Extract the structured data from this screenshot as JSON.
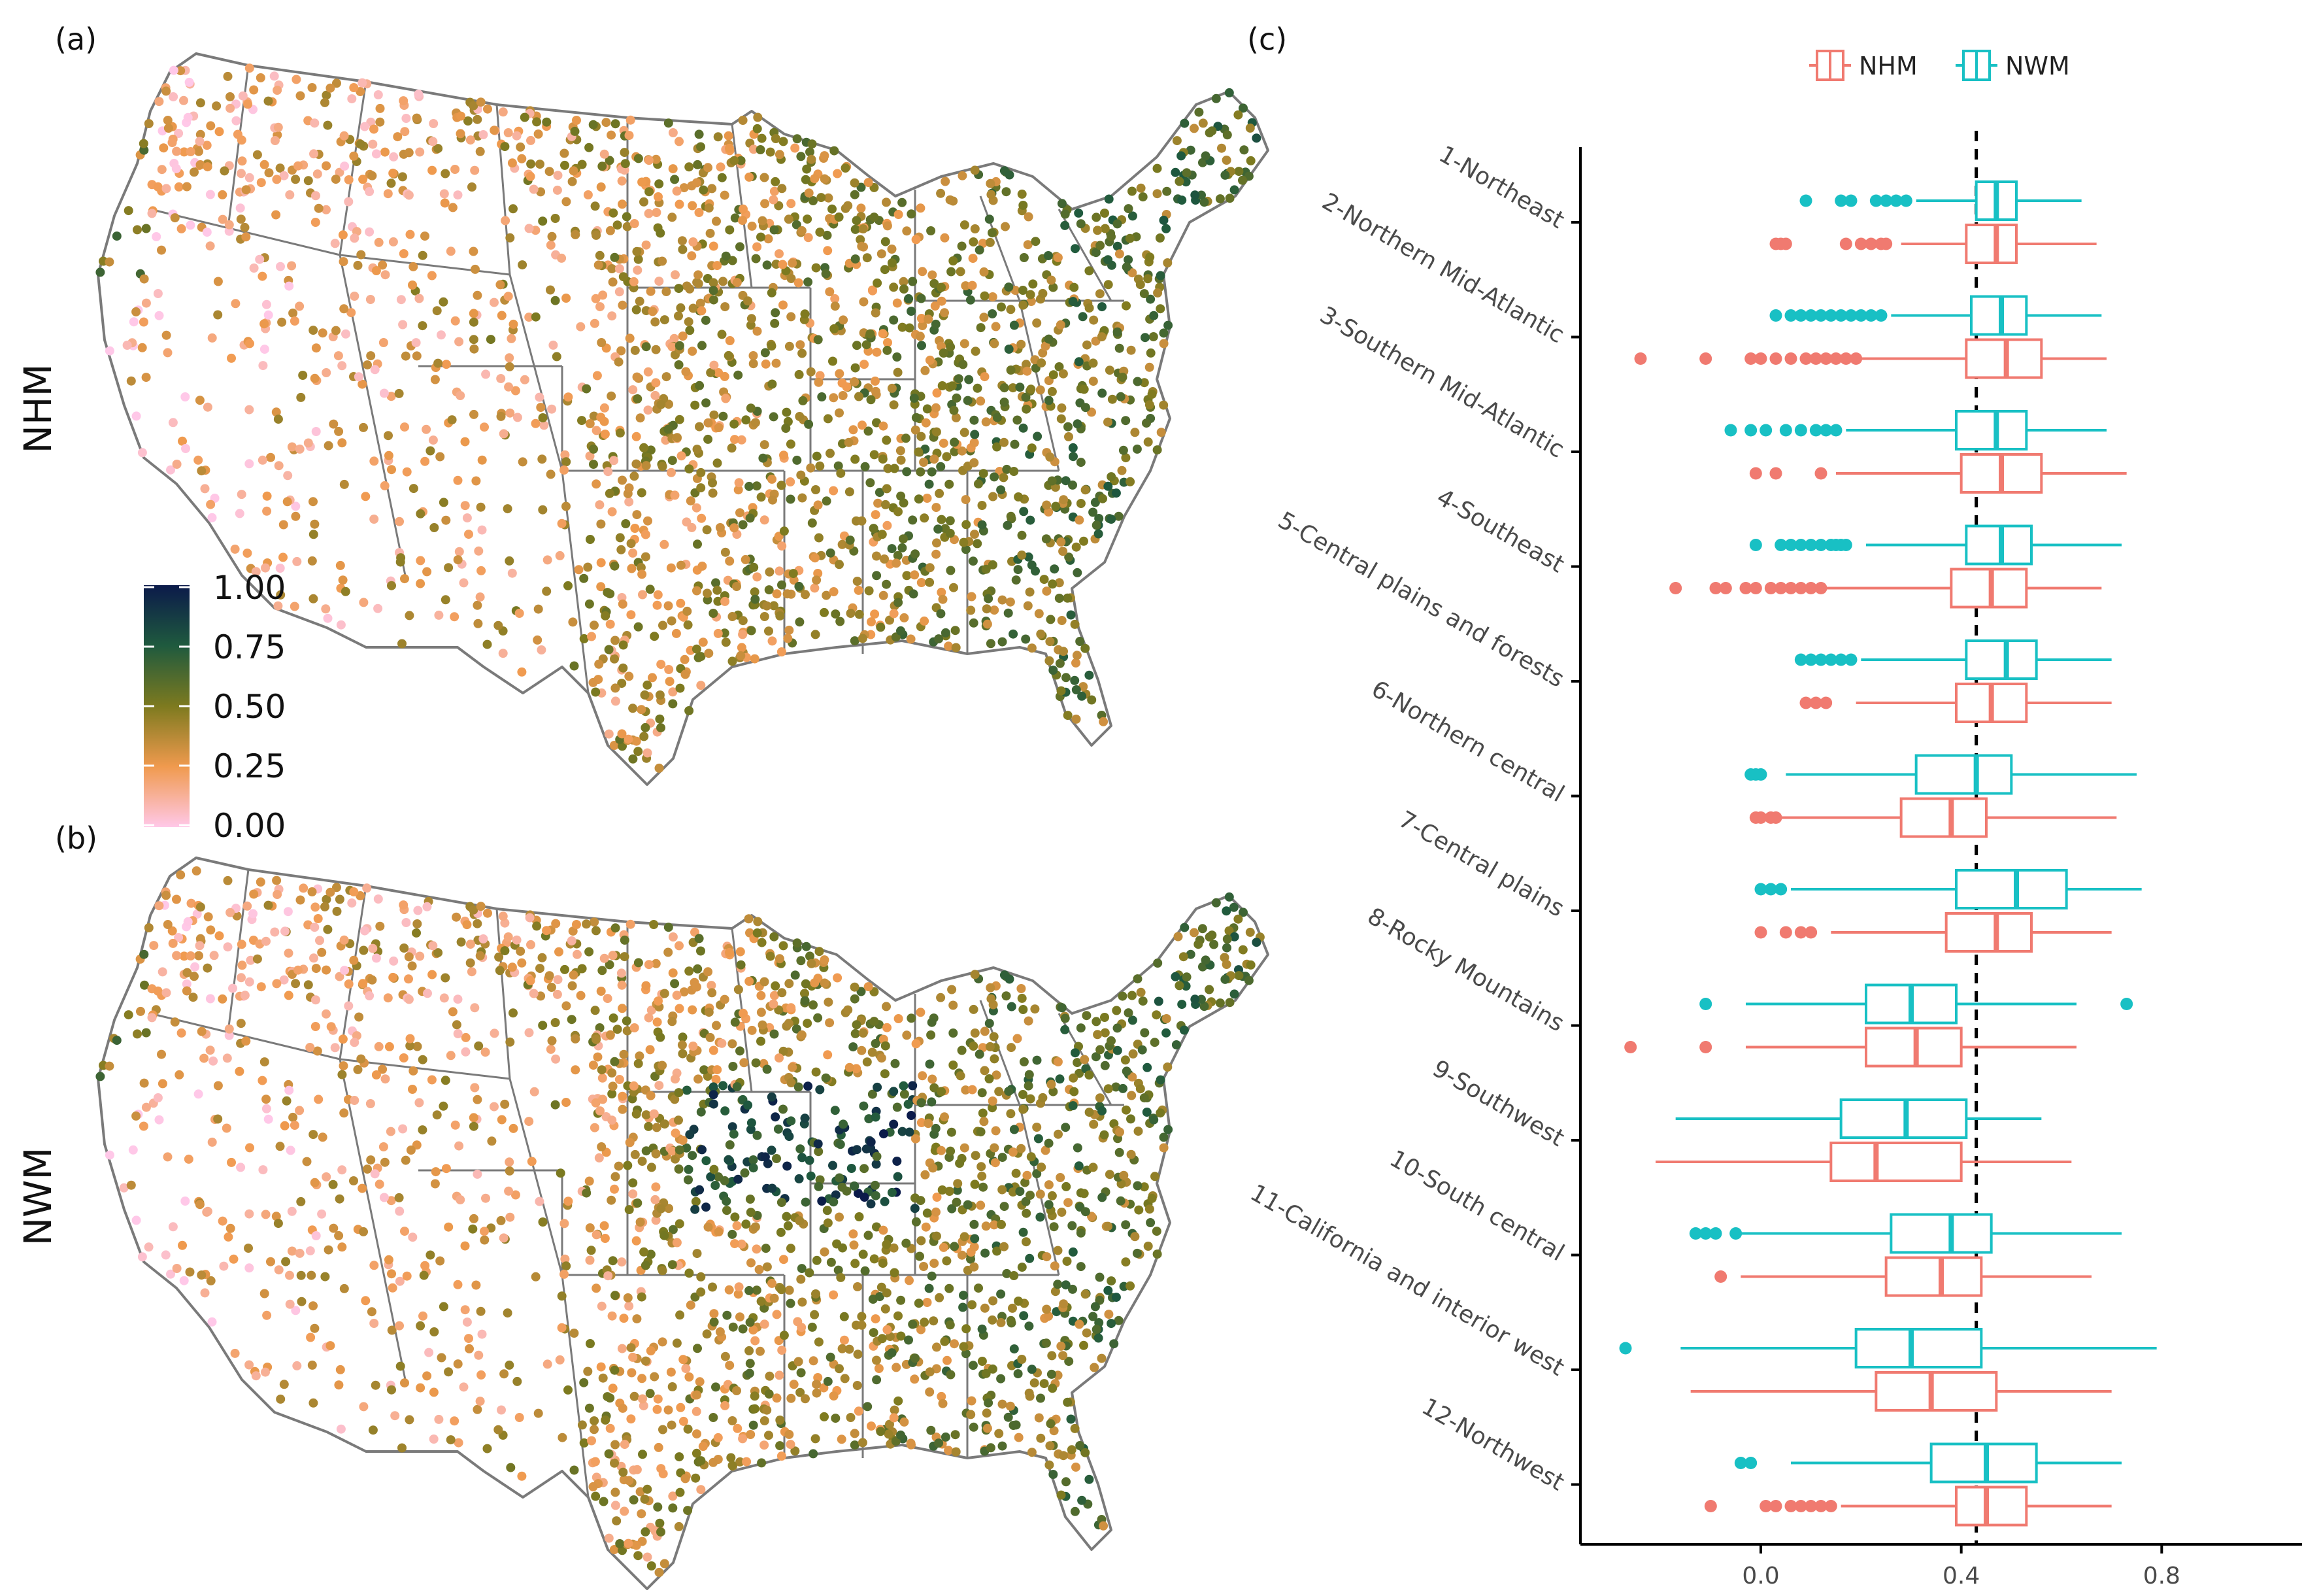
{
  "panels": {
    "a": {
      "label": "(a)",
      "side_title": "NHM"
    },
    "b": {
      "label": "(b)",
      "side_title": "NWM"
    },
    "c": {
      "label": "(c)"
    }
  },
  "colorbar": {
    "ticks": [
      "1.00",
      "0.75",
      "0.50",
      "0.25",
      "0.00"
    ],
    "stops": [
      "#0b1a4a",
      "#1f5a3e",
      "#7d7a1f",
      "#f09a4e",
      "#ffc8e8"
    ]
  },
  "legend": [
    {
      "name": "NHM",
      "color": "#f07a70"
    },
    {
      "name": "NWM",
      "color": "#18c0c4"
    }
  ],
  "chart_data": {
    "type": "boxplot",
    "orientation": "horizontal",
    "x_ticks": [
      "0.0",
      "0.4",
      "0.8"
    ],
    "xlim": [
      -0.36,
      1.08
    ],
    "reference_line": 0.43,
    "categories": [
      "1-Northeast",
      "2-Northern Mid-Atlantic",
      "3-Southern Mid-Atlantic",
      "4-Southeast",
      "5-Central plains and forests",
      "6-Northern central",
      "7-Central plains",
      "8-Rocky Mountains",
      "9-Southwest",
      "10-South central",
      "11-California and interior west",
      "12-Northwest"
    ],
    "series": [
      {
        "name": "NWM",
        "color": "#18c0c4",
        "boxes": [
          {
            "whislo": 0.31,
            "q1": 0.43,
            "med": 0.47,
            "q3": 0.51,
            "whishi": 0.64,
            "outliers": [
              0.09,
              0.16,
              0.18,
              0.23,
              0.25,
              0.27,
              0.29
            ]
          },
          {
            "whislo": 0.26,
            "q1": 0.42,
            "med": 0.48,
            "q3": 0.53,
            "whishi": 0.68,
            "outliers": [
              0.03,
              0.06,
              0.08,
              0.1,
              0.12,
              0.14,
              0.16,
              0.18,
              0.2,
              0.22,
              0.24
            ]
          },
          {
            "whislo": 0.17,
            "q1": 0.39,
            "med": 0.47,
            "q3": 0.53,
            "whishi": 0.69,
            "outliers": [
              -0.06,
              -0.02,
              0.01,
              0.05,
              0.08,
              0.11,
              0.13,
              0.15
            ]
          },
          {
            "whislo": 0.21,
            "q1": 0.41,
            "med": 0.48,
            "q3": 0.54,
            "whishi": 0.72,
            "outliers": [
              -0.01,
              0.04,
              0.06,
              0.08,
              0.1,
              0.12,
              0.14,
              0.15,
              0.16,
              0.17
            ]
          },
          {
            "whislo": 0.2,
            "q1": 0.41,
            "med": 0.49,
            "q3": 0.55,
            "whishi": 0.7,
            "outliers": [
              0.08,
              0.1,
              0.12,
              0.14,
              0.16,
              0.18
            ]
          },
          {
            "whislo": 0.05,
            "q1": 0.31,
            "med": 0.43,
            "q3": 0.5,
            "whishi": 0.75,
            "outliers": [
              -0.02,
              -0.01,
              0.0
            ]
          },
          {
            "whislo": 0.06,
            "q1": 0.39,
            "med": 0.51,
            "q3": 0.61,
            "whishi": 0.76,
            "outliers": [
              0.0,
              0.02,
              0.04
            ]
          },
          {
            "whislo": -0.03,
            "q1": 0.21,
            "med": 0.3,
            "q3": 0.39,
            "whishi": 0.63,
            "outliers": [
              -0.11,
              0.73
            ]
          },
          {
            "whislo": -0.17,
            "q1": 0.16,
            "med": 0.29,
            "q3": 0.41,
            "whishi": 0.56,
            "outliers": []
          },
          {
            "whislo": -0.05,
            "q1": 0.26,
            "med": 0.38,
            "q3": 0.46,
            "whishi": 0.72,
            "outliers": [
              -0.13,
              -0.11,
              -0.09,
              -0.05
            ]
          },
          {
            "whislo": -0.16,
            "q1": 0.19,
            "med": 0.3,
            "q3": 0.44,
            "whishi": 0.79,
            "outliers": [
              -0.27
            ]
          },
          {
            "whislo": 0.06,
            "q1": 0.34,
            "med": 0.45,
            "q3": 0.55,
            "whishi": 0.72,
            "outliers": [
              -0.04,
              -0.02
            ]
          }
        ]
      },
      {
        "name": "NHM",
        "color": "#f07a70",
        "boxes": [
          {
            "whislo": 0.28,
            "q1": 0.41,
            "med": 0.47,
            "q3": 0.51,
            "whishi": 0.67,
            "outliers": [
              0.03,
              0.04,
              0.05,
              0.17,
              0.2,
              0.22,
              0.24,
              0.25
            ]
          },
          {
            "whislo": 0.2,
            "q1": 0.41,
            "med": 0.49,
            "q3": 0.56,
            "whishi": 0.69,
            "outliers": [
              -0.24,
              -0.11,
              -0.02,
              0.0,
              0.03,
              0.06,
              0.09,
              0.11,
              0.13,
              0.15,
              0.17,
              0.19
            ]
          },
          {
            "whislo": 0.15,
            "q1": 0.4,
            "med": 0.48,
            "q3": 0.56,
            "whishi": 0.73,
            "outliers": [
              -0.01,
              0.03,
              0.12
            ]
          },
          {
            "whislo": 0.13,
            "q1": 0.38,
            "med": 0.46,
            "q3": 0.53,
            "whishi": 0.68,
            "outliers": [
              -0.17,
              -0.09,
              -0.07,
              -0.03,
              -0.01,
              0.02,
              0.04,
              0.06,
              0.08,
              0.1,
              0.12
            ]
          },
          {
            "whislo": 0.19,
            "q1": 0.39,
            "med": 0.46,
            "q3": 0.53,
            "whishi": 0.7,
            "outliers": [
              0.09,
              0.11,
              0.13
            ]
          },
          {
            "whislo": 0.04,
            "q1": 0.28,
            "med": 0.38,
            "q3": 0.45,
            "whishi": 0.71,
            "outliers": [
              -0.01,
              0.0,
              0.02,
              0.03
            ]
          },
          {
            "whislo": 0.14,
            "q1": 0.37,
            "med": 0.47,
            "q3": 0.54,
            "whishi": 0.7,
            "outliers": [
              0.0,
              0.05,
              0.08,
              0.1
            ]
          },
          {
            "whislo": -0.03,
            "q1": 0.21,
            "med": 0.31,
            "q3": 0.4,
            "whishi": 0.63,
            "outliers": [
              -0.26,
              -0.11
            ]
          },
          {
            "whislo": -0.21,
            "q1": 0.14,
            "med": 0.23,
            "q3": 0.4,
            "whishi": 0.62,
            "outliers": []
          },
          {
            "whislo": -0.04,
            "q1": 0.25,
            "med": 0.36,
            "q3": 0.44,
            "whishi": 0.66,
            "outliers": [
              -0.08
            ]
          },
          {
            "whislo": -0.14,
            "q1": 0.23,
            "med": 0.34,
            "q3": 0.47,
            "whishi": 0.7,
            "outliers": []
          },
          {
            "whislo": 0.16,
            "q1": 0.39,
            "med": 0.45,
            "q3": 0.53,
            "whishi": 0.7,
            "outliers": [
              -0.1,
              0.01,
              0.03,
              0.06,
              0.08,
              0.1,
              0.12,
              0.14
            ]
          }
        ]
      }
    ]
  }
}
